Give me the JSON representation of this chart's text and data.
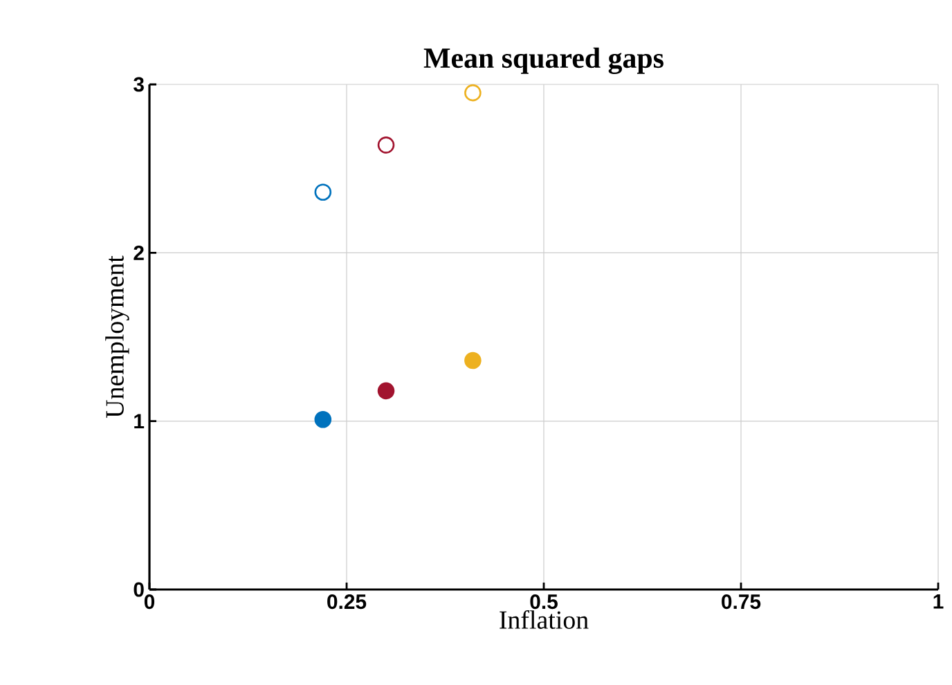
{
  "chart_data": {
    "type": "scatter",
    "title": "Mean squared gaps",
    "xlabel": "Inflation",
    "ylabel": "Unemployment",
    "xlim": [
      0,
      1
    ],
    "xticks": [
      0,
      0.25,
      0.5,
      0.75,
      1
    ],
    "ylim": [
      0,
      3
    ],
    "yticks": [
      0,
      1,
      2,
      3
    ],
    "grid": true,
    "series": [
      {
        "color": "#0072bd",
        "x": [
          0.22
        ],
        "values": [
          1.01
        ],
        "marker": "circle"
      },
      {
        "color": "#a2142f",
        "x": [
          0.3
        ],
        "values": [
          1.18
        ],
        "marker": "circle"
      },
      {
        "color": "#edb120",
        "x": [
          0.41
        ],
        "values": [
          1.36
        ],
        "marker": "circle"
      },
      {
        "color": "#0072bd",
        "x": [
          0.22
        ],
        "values": [
          2.36
        ],
        "marker": "circle-open"
      },
      {
        "color": "#a2142f",
        "x": [
          0.3
        ],
        "values": [
          2.64
        ],
        "marker": "circle-open"
      },
      {
        "color": "#edb120",
        "x": [
          0.41
        ],
        "values": [
          2.95
        ],
        "marker": "circle-open"
      }
    ]
  }
}
